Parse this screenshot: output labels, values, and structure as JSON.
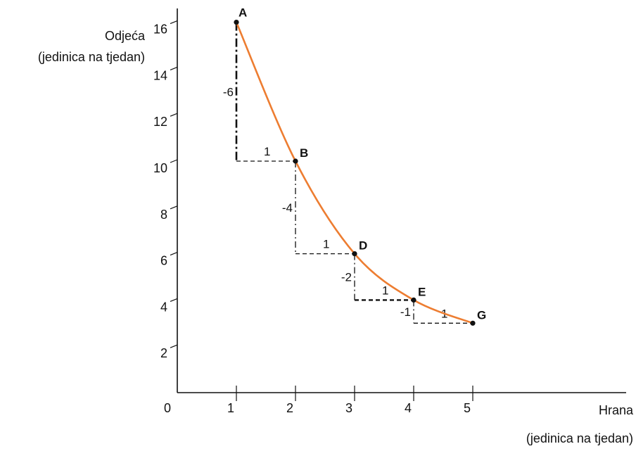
{
  "chart_data": {
    "type": "line",
    "title": "",
    "ylabel": [
      "Odjeća",
      "(jedinica na tjedan)"
    ],
    "xlabel": [
      "Hrana",
      "(jedinica na tjedan)"
    ],
    "origin_label": "0",
    "x_ticks": [
      "1",
      "2",
      "3",
      "4",
      "5"
    ],
    "y_ticks": [
      "2",
      "4",
      "6",
      "8",
      "10",
      "12",
      "14",
      "16"
    ],
    "xlim": [
      0,
      5.4
    ],
    "ylim": [
      0,
      16.8
    ],
    "series": [
      {
        "points": [
          {
            "label": "A",
            "x": 1,
            "y": 16
          },
          {
            "label": "B",
            "x": 2,
            "y": 10
          },
          {
            "label": "D",
            "x": 3,
            "y": 6
          },
          {
            "label": "E",
            "x": 4,
            "y": 4
          },
          {
            "label": "G",
            "x": 5,
            "y": 3
          }
        ],
        "color": "#ed7d31"
      }
    ],
    "steps": [
      {
        "x": 1,
        "y_from": 16,
        "y_to": 10,
        "dy_label": "-6",
        "dx_label": "1"
      },
      {
        "x": 2,
        "y_from": 10,
        "y_to": 6,
        "dy_label": "-4",
        "dx_label": "1"
      },
      {
        "x": 3,
        "y_from": 6,
        "y_to": 4,
        "dy_label": "-2",
        "dx_label": "1"
      },
      {
        "x": 4,
        "y_from": 4,
        "y_to": 3,
        "dy_label": "-1",
        "dx_label": "1"
      }
    ],
    "grid": false
  }
}
